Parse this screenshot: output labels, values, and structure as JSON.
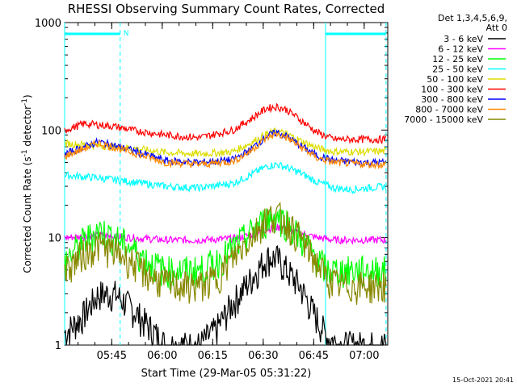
{
  "chart_data": {
    "type": "line",
    "title": "RHESSI Observing Summary Count Rates, Corrected",
    "xlabel": "Start Time (29-Mar-05 05:31:22)",
    "ylabel": "Corrected Count Rate (s",
    "ylabel_sup1": "-1",
    "ylabel_mid": " detector",
    "ylabel_sup2": "-1",
    "ylabel_end": ")",
    "y_scale": "log",
    "ylim": [
      1,
      1000
    ],
    "xlim_minutes_after_0531": [
      0,
      96
    ],
    "x_ticks": [
      {
        "label": "05:45",
        "minute": 14
      },
      {
        "label": "06:00",
        "minute": 29
      },
      {
        "label": "06:15",
        "minute": 44
      },
      {
        "label": "06:30",
        "minute": 59
      },
      {
        "label": "06:45",
        "minute": 74
      },
      {
        "label": "07:00",
        "minute": 89
      }
    ],
    "y_ticks": [
      {
        "label": "1",
        "value": 1
      },
      {
        "label": "10",
        "value": 10
      },
      {
        "label": "100",
        "value": 100
      },
      {
        "label": "1000",
        "value": 1000
      }
    ],
    "legend_header": [
      "Det 1,3,4,5,6,9,",
      "Att 0"
    ],
    "legend_position": "right",
    "night_marker_label": "N",
    "night_interval_minutes": [
      [
        0,
        16.5
      ],
      [
        77.5,
        95.5
      ]
    ],
    "timestamp": "15-Oct-2021 20:41",
    "series": [
      {
        "name": "3 - 6 keV",
        "color": "#000000",
        "x": [
          0,
          5,
          10,
          15,
          20,
          25,
          30,
          35,
          40,
          45,
          50,
          55,
          60,
          63,
          66,
          70,
          74,
          78,
          82,
          86,
          90,
          94,
          96
        ],
        "y": [
          1.3,
          1.8,
          3.0,
          3.0,
          2.2,
          1.5,
          1.0,
          1.0,
          1.0,
          1.4,
          2.5,
          4.0,
          6.5,
          6.5,
          5.0,
          3.5,
          2.0,
          1.2,
          1.0,
          1.0,
          1.0,
          1.0,
          1.0
        ]
      },
      {
        "name": "6 - 12 keV",
        "color": "#ff00ff",
        "x": [
          0,
          10,
          20,
          30,
          40,
          50,
          55,
          60,
          63,
          66,
          70,
          75,
          80,
          90,
          96
        ],
        "y": [
          10,
          10.5,
          10,
          9.5,
          9.5,
          9.8,
          10.5,
          12,
          12.5,
          12,
          11,
          10,
          9.5,
          9.5,
          9.5
        ]
      },
      {
        "name": "12 - 25 keV",
        "color": "#00ff00",
        "x": [
          0,
          5,
          10,
          15,
          20,
          25,
          30,
          35,
          40,
          45,
          50,
          55,
          60,
          63,
          66,
          70,
          74,
          78,
          82,
          86,
          90,
          94,
          96
        ],
        "y": [
          6,
          9,
          12,
          10,
          8,
          6,
          5,
          5,
          5,
          6,
          8,
          11,
          15,
          16,
          14,
          10,
          7,
          5,
          5,
          5,
          5,
          5,
          5
        ]
      },
      {
        "name": "25 - 50 keV",
        "color": "#00ffff",
        "x": [
          0,
          10,
          20,
          30,
          40,
          50,
          55,
          60,
          63,
          66,
          70,
          75,
          80,
          85,
          90,
          96
        ],
        "y": [
          38,
          36,
          33,
          30,
          29,
          32,
          38,
          46,
          48,
          45,
          40,
          33,
          29,
          28,
          29,
          30
        ]
      },
      {
        "name": "50 - 100 keV",
        "color": "#dddd00",
        "x": [
          0,
          10,
          20,
          30,
          40,
          50,
          55,
          60,
          63,
          66,
          70,
          75,
          80,
          90,
          96
        ],
        "y": [
          75,
          72,
          68,
          62,
          60,
          63,
          75,
          92,
          98,
          92,
          80,
          68,
          63,
          63,
          64
        ]
      },
      {
        "name": "100 - 300 keV",
        "color": "#ff0000",
        "x": [
          0,
          6,
          10,
          15,
          20,
          30,
          40,
          50,
          55,
          60,
          63,
          66,
          70,
          75,
          80,
          90,
          96
        ],
        "y": [
          100,
          115,
          112,
          108,
          100,
          90,
          85,
          100,
          125,
          160,
          165,
          155,
          125,
          95,
          82,
          82,
          82
        ]
      },
      {
        "name": "300 - 800 keV",
        "color": "#0000ff",
        "x": [
          0,
          10,
          20,
          30,
          40,
          50,
          55,
          60,
          63,
          66,
          70,
          75,
          80,
          90,
          96
        ],
        "y": [
          60,
          78,
          65,
          52,
          50,
          53,
          65,
          88,
          95,
          88,
          72,
          58,
          52,
          50,
          50
        ]
      },
      {
        "name": "800 - 7000 keV",
        "color": "#ff8800",
        "x": [
          0,
          10,
          20,
          30,
          40,
          50,
          55,
          60,
          63,
          66,
          70,
          75,
          80,
          90,
          96
        ],
        "y": [
          57,
          76,
          62,
          50,
          48,
          51,
          63,
          85,
          92,
          85,
          70,
          55,
          50,
          48,
          48
        ]
      },
      {
        "name": "7000 - 15000 keV",
        "color": "#888800",
        "x": [
          0,
          5,
          10,
          15,
          20,
          25,
          30,
          35,
          40,
          45,
          50,
          55,
          60,
          63,
          66,
          70,
          74,
          78,
          82,
          86,
          90,
          94,
          96
        ],
        "y": [
          5,
          7,
          8.5,
          7.5,
          6,
          4.5,
          3.8,
          3.6,
          3.6,
          4.2,
          6.5,
          10,
          15.5,
          16.5,
          14,
          10,
          6.5,
          4.2,
          3.6,
          3.6,
          3.6,
          3.6,
          3.6
        ]
      }
    ]
  }
}
